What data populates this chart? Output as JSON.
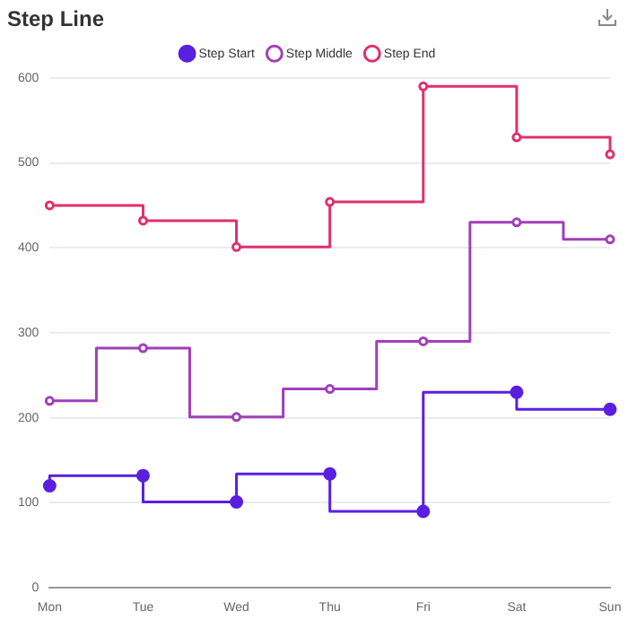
{
  "chart_data": {
    "type": "step",
    "title": "Step Line",
    "categories": [
      "Mon",
      "Tue",
      "Wed",
      "Thu",
      "Fri",
      "Sat",
      "Sun"
    ],
    "series": [
      {
        "name": "Step Start",
        "color": "#5a1fe0",
        "values": [
          120,
          132,
          101,
          134,
          90,
          230,
          210
        ]
      },
      {
        "name": "Step Middle",
        "color": "#a040b8",
        "values": [
          220,
          282,
          201,
          234,
          290,
          430,
          410
        ]
      },
      {
        "name": "Step End",
        "color": "#e0306a",
        "values": [
          450,
          432,
          401,
          454,
          590,
          530,
          510
        ]
      }
    ],
    "ylim": [
      0,
      600
    ],
    "yticks": [
      0,
      100,
      200,
      300,
      400,
      500,
      600
    ],
    "grid": "y",
    "legend": "top",
    "marker": "circle"
  }
}
